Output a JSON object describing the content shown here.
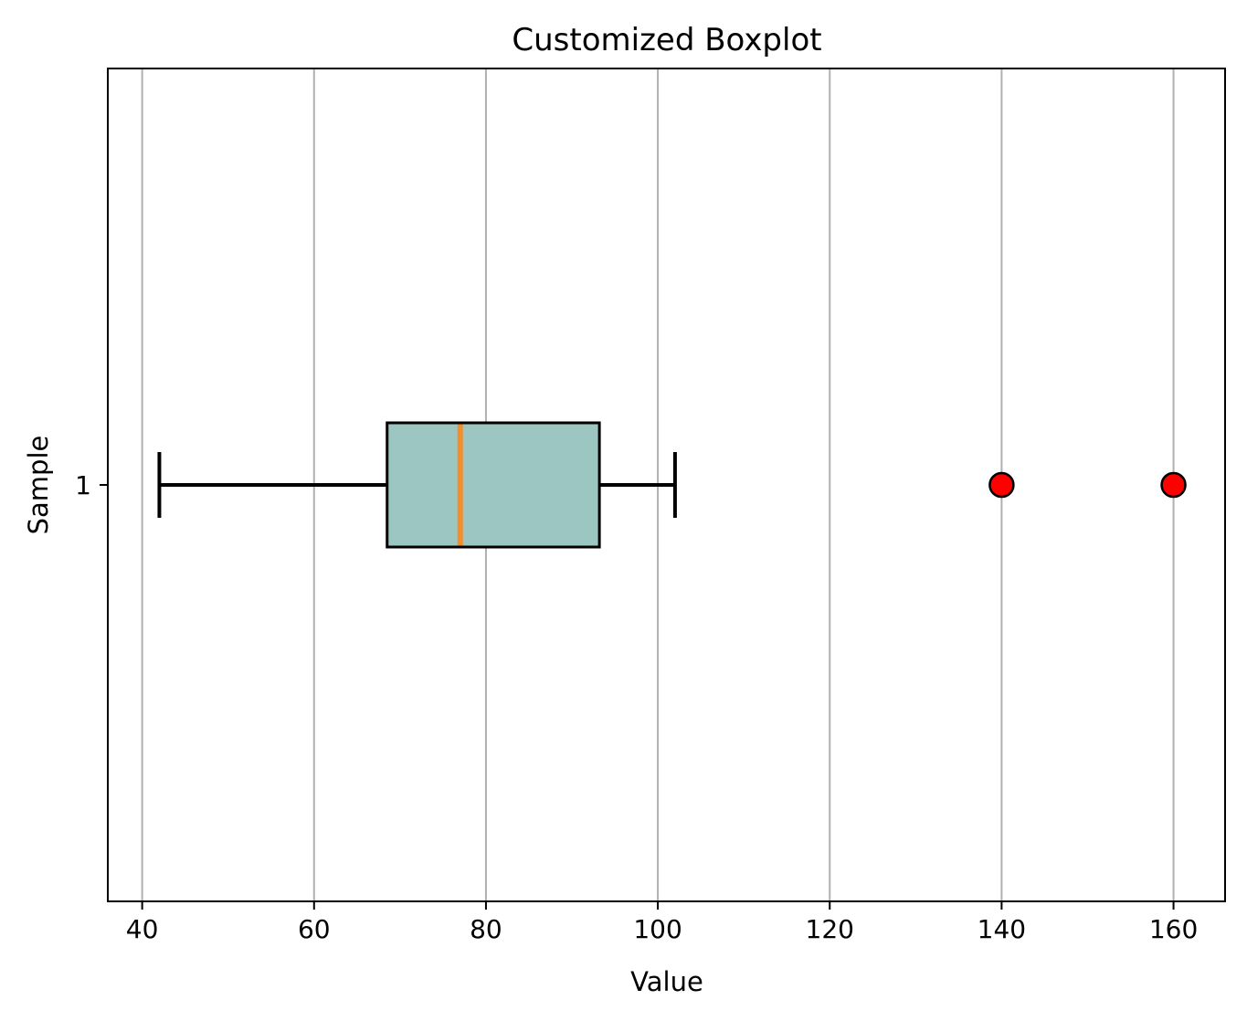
{
  "chart_data": {
    "type": "boxplot",
    "orientation": "horizontal",
    "title": "Customized Boxplot",
    "xlabel": "Value",
    "ylabel": "Sample",
    "xlim": [
      36,
      166
    ],
    "xticks": [
      40,
      60,
      80,
      100,
      120,
      140,
      160
    ],
    "yticks": [
      1
    ],
    "grid": "x-axis only",
    "series": [
      {
        "category": "1",
        "whisker_low": 42,
        "q1": 68.5,
        "median": 77,
        "q3": 93.2,
        "whisker_high": 102,
        "outliers": [
          140,
          160
        ]
      }
    ],
    "colors": {
      "box_fill": "#9bc6c1",
      "box_edge": "#000000",
      "median_line": "#f28e2b",
      "whiskers": "#000000",
      "outlier_fill": "#ff0000",
      "outlier_edge": "#000000",
      "grid": "#b0b0b0"
    }
  }
}
